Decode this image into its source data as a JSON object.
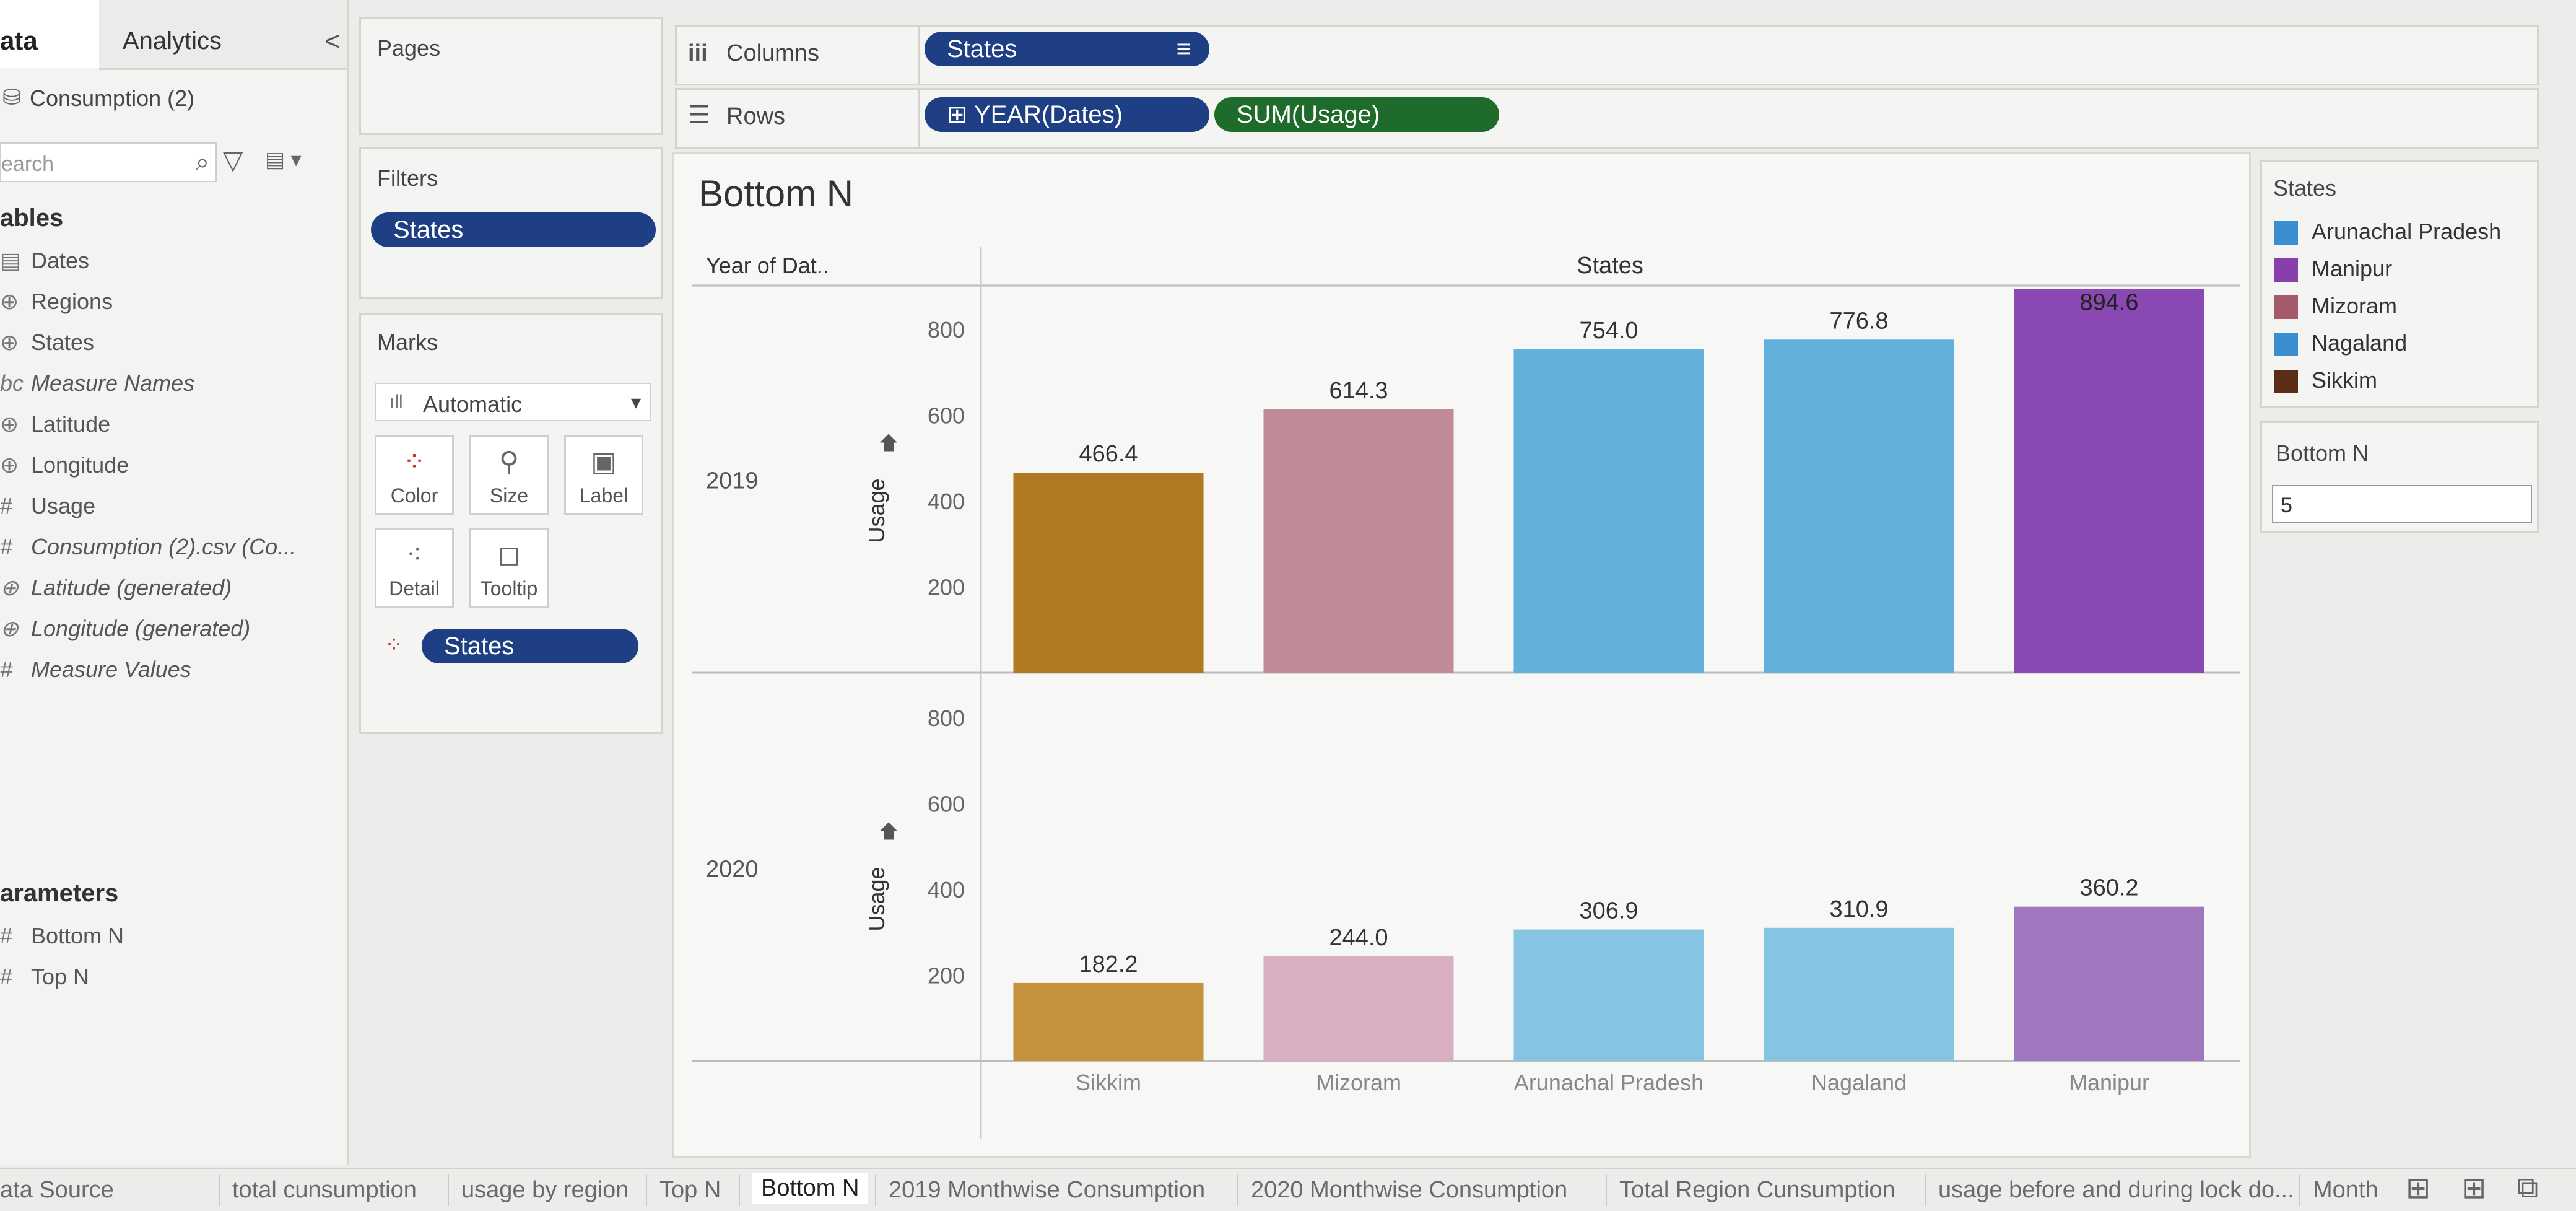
{
  "data_pane": {
    "tab_data": "ata",
    "tab_analytics": "Analytics",
    "collapse_glyph": "<",
    "datasource": "Consumption (2)",
    "search_placeholder": "earch",
    "tables_header": "ables",
    "fields": [
      {
        "label": "Dates",
        "icon": "▤",
        "italic": false
      },
      {
        "label": "Regions",
        "icon": "⊕",
        "italic": false
      },
      {
        "label": "States",
        "icon": "⊕",
        "italic": false
      },
      {
        "label": "Measure Names",
        "icon": "bc",
        "italic": true
      },
      {
        "label": "Latitude",
        "icon": "⊕",
        "italic": false
      },
      {
        "label": "Longitude",
        "icon": "⊕",
        "italic": false
      },
      {
        "label": "Usage",
        "icon": "#",
        "italic": false
      },
      {
        "label": "Consumption (2).csv (Co...",
        "icon": "#",
        "italic": true
      },
      {
        "label": "Latitude (generated)",
        "icon": "⊕",
        "italic": true
      },
      {
        "label": "Longitude (generated)",
        "icon": "⊕",
        "italic": true
      },
      {
        "label": "Measure Values",
        "icon": "#",
        "italic": true
      }
    ],
    "parameters_header": "arameters",
    "parameters": [
      {
        "label": "Bottom N",
        "icon": "#"
      },
      {
        "label": "Top N",
        "icon": "#"
      }
    ]
  },
  "pages_shelf": {
    "title": "Pages"
  },
  "filters_shelf": {
    "title": "Filters",
    "pill": "States"
  },
  "marks_card": {
    "title": "Marks",
    "mark_type": "Automatic",
    "buttons": {
      "color": "Color",
      "size": "Size",
      "label": "Label",
      "detail": "Detail",
      "tooltip": "Tooltip"
    },
    "color_pill": "States"
  },
  "columns_shelf": {
    "label": "Columns",
    "pill": "States",
    "icon": "iii"
  },
  "rows_shelf": {
    "label": "Rows",
    "pill_year": "⊞ YEAR(Dates)",
    "pill_usage": "SUM(Usage)",
    "icon": "☰"
  },
  "legend": {
    "title": "States",
    "items": [
      {
        "label": "Arunachal Pradesh",
        "color": "#3b8fd1"
      },
      {
        "label": "Manipur",
        "color": "#8a3eab"
      },
      {
        "label": "Mizoram",
        "color": "#a35a6a"
      },
      {
        "label": "Nagaland",
        "color": "#3b8fd1"
      },
      {
        "label": "Sikkim",
        "color": "#5b2f15"
      }
    ]
  },
  "parameter_control": {
    "title": "Bottom N",
    "value": "5"
  },
  "sheet_tabs": {
    "tabs": [
      "ata Source",
      "total cunsumption",
      "usage by region",
      "Top N",
      "Bottom N",
      "2019 Monthwise Consumption",
      "2020 Monthwise Consumption",
      "Total Region Cunsumption",
      "usage before and during lock do...",
      "Month"
    ],
    "active": "Bottom N"
  },
  "chart_data": {
    "type": "bar",
    "title": "Bottom N",
    "header_left": "Year of Dat..",
    "header_top": "States",
    "ylabel": "Usage",
    "categories": [
      "Sikkim",
      "Mizoram",
      "Arunachal Pradesh",
      "Nagaland",
      "Manipur"
    ],
    "ylim": [
      0,
      900
    ],
    "yticks": [
      200,
      400,
      600,
      800
    ],
    "series": [
      {
        "name": "2019",
        "values": [
          466.4,
          614.3,
          754.0,
          776.8,
          894.6
        ],
        "labels": [
          "466.4",
          "614.3",
          "754.0",
          "776.8",
          "894.6"
        ]
      },
      {
        "name": "2020",
        "values": [
          182.2,
          244.0,
          306.9,
          310.9,
          360.2
        ],
        "labels": [
          "182.2",
          "244.0",
          "306.9",
          "310.9",
          "360.2"
        ]
      }
    ],
    "bar_colors": {
      "2019": [
        "#b07a22",
        "#c08a98",
        "#63b0dd",
        "#63b0dd",
        "#8a48b3"
      ],
      "2020": [
        "#c4923a",
        "#d8aec0",
        "#86c4e2",
        "#86c4e2",
        "#a176c1"
      ]
    },
    "grid": false
  }
}
